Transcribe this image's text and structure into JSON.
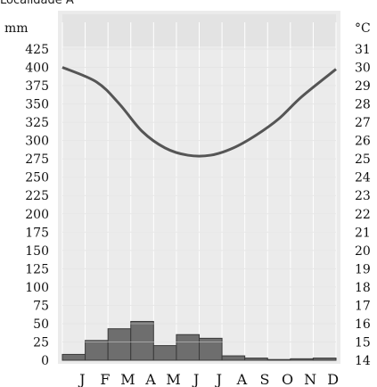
{
  "caption": "Localidade A",
  "chart_data": {
    "type": "climograph",
    "categories": [
      "J",
      "F",
      "M",
      "A",
      "M",
      "J",
      "J",
      "A",
      "S",
      "O",
      "N",
      "D"
    ],
    "precipitation": {
      "unit": "mm",
      "type": "bar",
      "values": [
        8,
        27,
        43,
        53,
        20,
        35,
        30,
        6,
        3,
        1,
        2,
        3
      ],
      "ylim": [
        0,
        425
      ],
      "ticks": [
        0,
        25,
        50,
        75,
        100,
        125,
        150,
        175,
        200,
        225,
        250,
        275,
        300,
        325,
        350,
        375,
        400,
        425
      ]
    },
    "temperature": {
      "unit": "°C",
      "type": "line",
      "values": [
        30.0,
        29.2,
        28.0,
        26.5,
        25.6,
        25.2,
        25.2,
        25.6,
        26.3,
        27.2,
        28.4,
        29.9
      ],
      "ylim": [
        14,
        31
      ],
      "ticks": [
        14,
        15,
        16,
        17,
        18,
        19,
        20,
        21,
        22,
        23,
        24,
        25,
        26,
        27,
        28,
        29,
        30,
        31
      ]
    },
    "grid": true,
    "colors": {
      "plot_background": "#ebebeb",
      "grid": "#ffffff",
      "bar_fill": "#6e6e6e",
      "bar_stroke": "#3a3a3a",
      "line": "#555555"
    }
  }
}
